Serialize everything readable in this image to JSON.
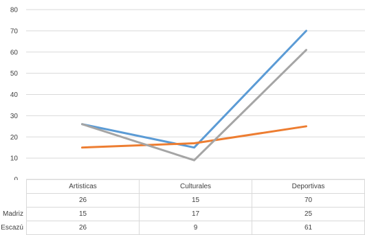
{
  "chart_data": {
    "type": "line",
    "title": "",
    "xlabel": "",
    "ylabel": "",
    "ylim": [
      0,
      80
    ],
    "yticks": [
      0,
      10,
      20,
      30,
      40,
      50,
      60,
      70,
      80
    ],
    "categories": [
      "Artisticas",
      "Culturales",
      "Deportivas"
    ],
    "grid": true,
    "legend": "data-table",
    "series": [
      {
        "name": "",
        "values": [
          26,
          15,
          70
        ],
        "color": "#5b9bd5"
      },
      {
        "name": "Madriz",
        "values": [
          15,
          17,
          25
        ],
        "color": "#ed7d31"
      },
      {
        "name": "Escazú",
        "values": [
          26,
          9,
          61
        ],
        "color": "#a5a5a5"
      }
    ]
  }
}
